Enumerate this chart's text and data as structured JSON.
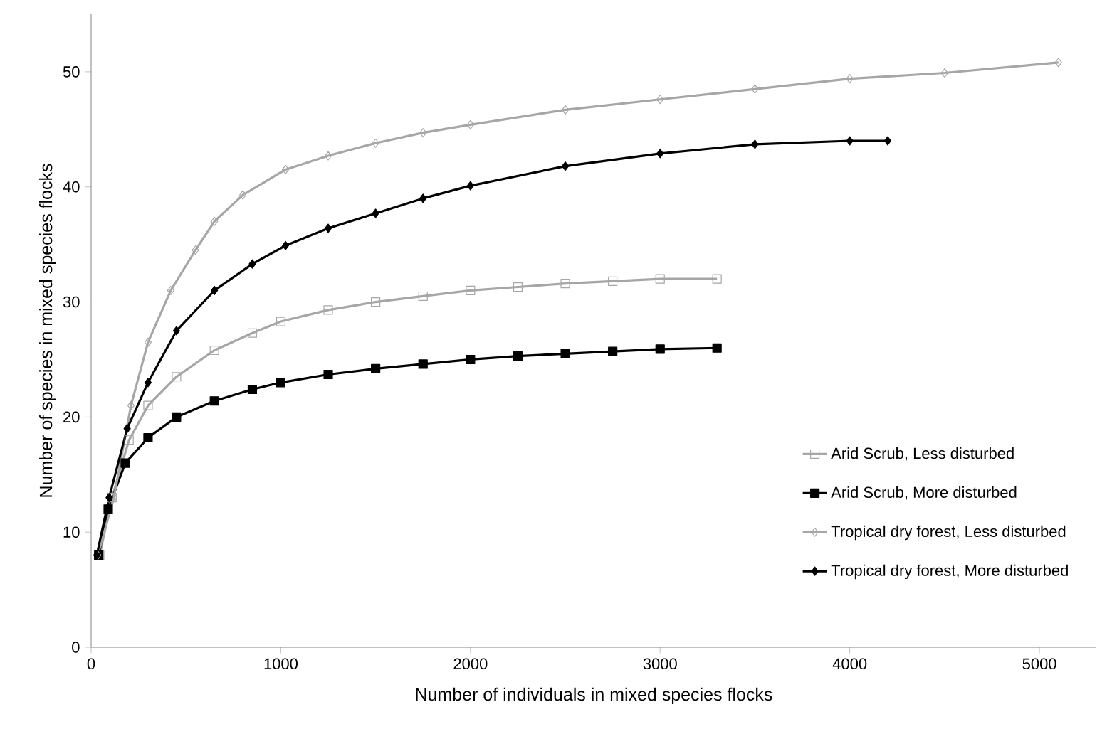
{
  "chart_data": {
    "type": "line",
    "xlabel": "Number of individuals in mixed species flocks",
    "ylabel": "Number of species in mixed species flocks",
    "xlim": [
      0,
      5300
    ],
    "ylim": [
      0,
      55
    ],
    "xticks": [
      0,
      1000,
      2000,
      3000,
      4000,
      5000
    ],
    "yticks": [
      0,
      10,
      20,
      30,
      40,
      50
    ],
    "grid": false,
    "legend": "bottom right",
    "series": [
      {
        "name": "Arid Scrub, Less disturbed",
        "color": "#a6a6a6",
        "marker": "square",
        "x": [
          45,
          110,
          200,
          300,
          450,
          650,
          850,
          1000,
          1250,
          1500,
          1750,
          2000,
          2250,
          2500,
          2750,
          3000,
          3300
        ],
        "values": [
          8,
          13,
          18,
          21,
          23.5,
          25.8,
          27.3,
          28.3,
          29.3,
          30,
          30.5,
          31,
          31.3,
          31.6,
          31.8,
          32,
          32
        ]
      },
      {
        "name": "Arid Scrub, More disturbed",
        "color": "#000000",
        "marker": "square",
        "x": [
          40,
          90,
          180,
          300,
          450,
          650,
          850,
          1000,
          1250,
          1500,
          1750,
          2000,
          2250,
          2500,
          2750,
          3000,
          3300
        ],
        "values": [
          8,
          12,
          16,
          18.2,
          20,
          21.4,
          22.4,
          23,
          23.7,
          24.2,
          24.6,
          25,
          25.3,
          25.5,
          25.7,
          25.9,
          26
        ]
      },
      {
        "name": "Tropical dry forest, Less disturbed",
        "color": "#a6a6a6",
        "marker": "diamond",
        "x": [
          35,
          120,
          210,
          300,
          420,
          550,
          650,
          800,
          1025,
          1250,
          1500,
          1750,
          2000,
          2500,
          3000,
          3500,
          4000,
          4500,
          5100
        ],
        "values": [
          8,
          13,
          21,
          26.5,
          31,
          34.5,
          37,
          39.3,
          41.5,
          42.7,
          43.8,
          44.7,
          45.4,
          46.7,
          47.6,
          48.5,
          49.4,
          49.9,
          50.8
        ]
      },
      {
        "name": "Tropical dry forest, More disturbed",
        "color": "#000000",
        "marker": "diamond",
        "x": [
          30,
          95,
          190,
          300,
          450,
          650,
          850,
          1025,
          1250,
          1500,
          1750,
          2000,
          2500,
          3000,
          3500,
          4000,
          4200
        ],
        "values": [
          8,
          13,
          19,
          23,
          27.5,
          31,
          33.3,
          34.9,
          36.4,
          37.7,
          39,
          40.1,
          41.8,
          42.9,
          43.7,
          44,
          44
        ]
      }
    ]
  }
}
